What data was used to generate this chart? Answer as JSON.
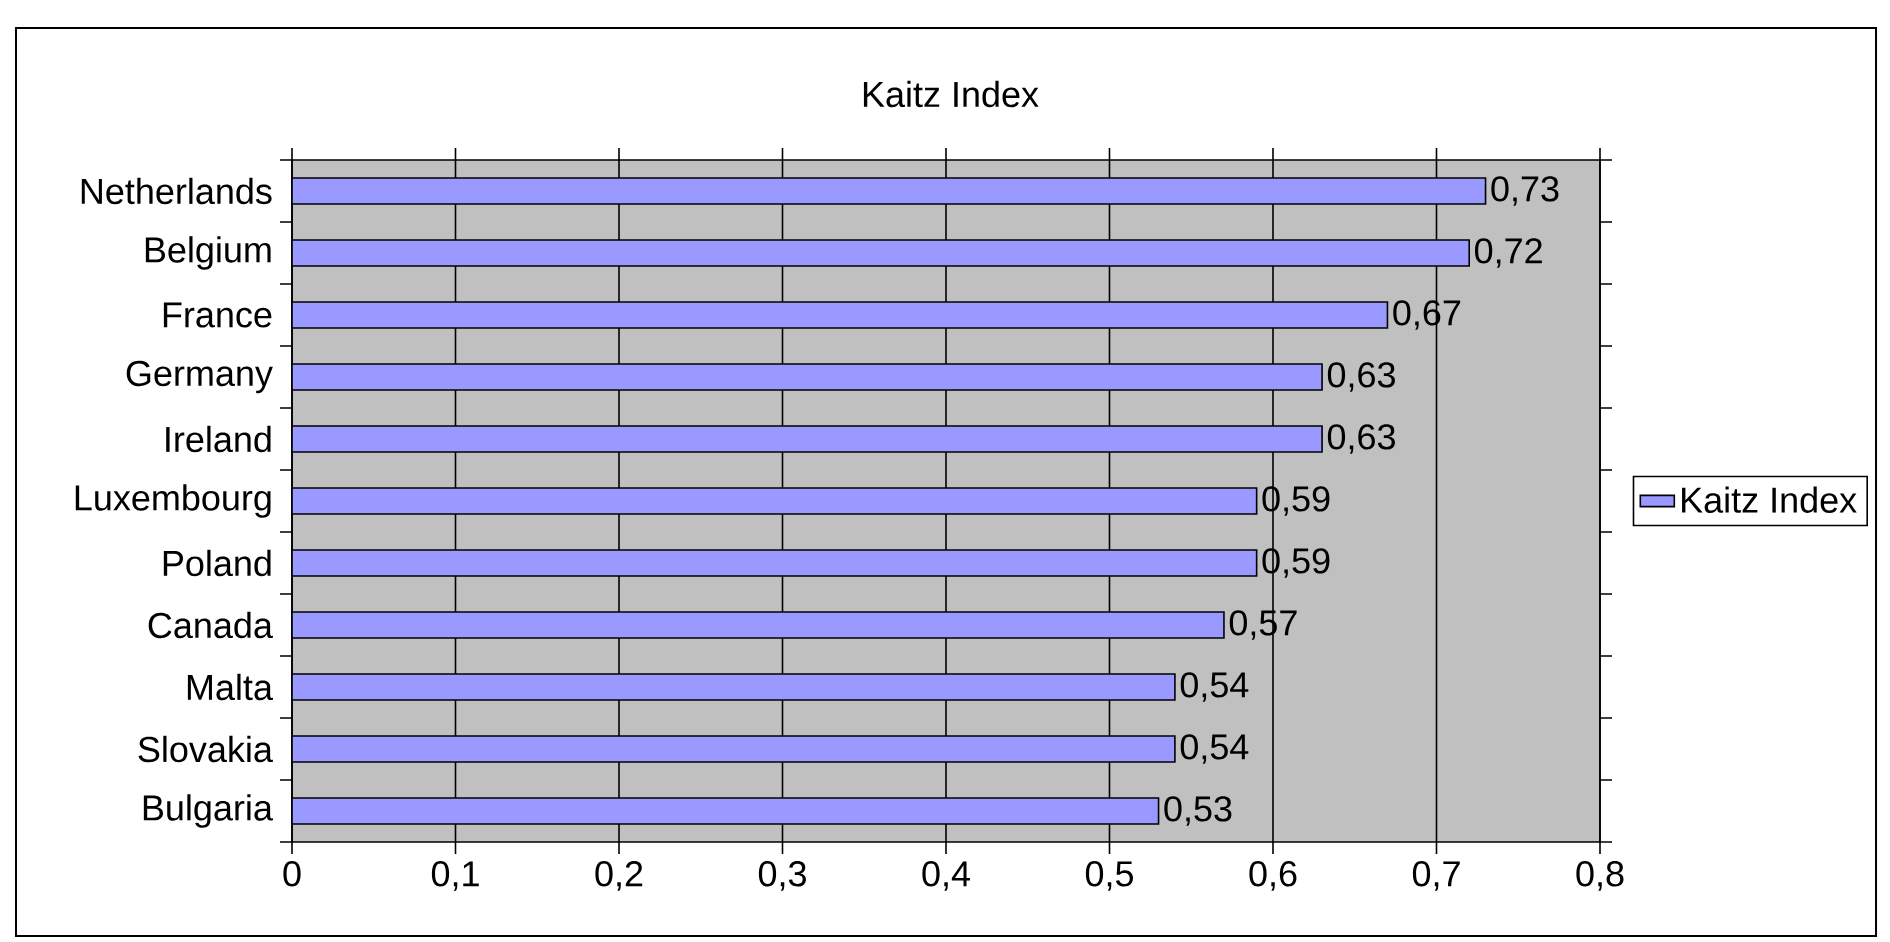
{
  "chart_data": {
    "type": "bar",
    "orientation": "horizontal",
    "title": "Kaitz Index",
    "categories": [
      "Netherlands",
      "Belgium",
      "France",
      "Germany",
      "Ireland",
      "Luxembourg",
      "Poland",
      "Canada",
      "Malta",
      "Slovakia",
      "Bulgaria"
    ],
    "series": [
      {
        "name": "Kaitz Index",
        "color": "#9999ff",
        "values": [
          0.73,
          0.72,
          0.67,
          0.63,
          0.63,
          0.59,
          0.59,
          0.57,
          0.54,
          0.54,
          0.53
        ],
        "value_labels": [
          "0,73",
          "0,72",
          "0,67",
          "0,63",
          "0,63",
          "0,59",
          "0,59",
          "0,57",
          "0,54",
          "0,54",
          "0,53"
        ]
      }
    ],
    "xlim": [
      0,
      0.8
    ],
    "xticks": [
      0,
      {
        "value": 0.1,
        "label": "0,1"
      },
      {
        "value": 0.2,
        "label": "0,2"
      },
      {
        "value": 0.3,
        "label": "0,3"
      },
      {
        "value": 0.4,
        "label": "0,4"
      },
      {
        "value": 0.5,
        "label": "0,5"
      },
      {
        "value": 0.6,
        "label": "0,6"
      },
      {
        "value": 0.7,
        "label": "0,7"
      },
      {
        "value": 0.8,
        "label": "0,8"
      }
    ],
    "grid": "x",
    "legend": "right"
  }
}
